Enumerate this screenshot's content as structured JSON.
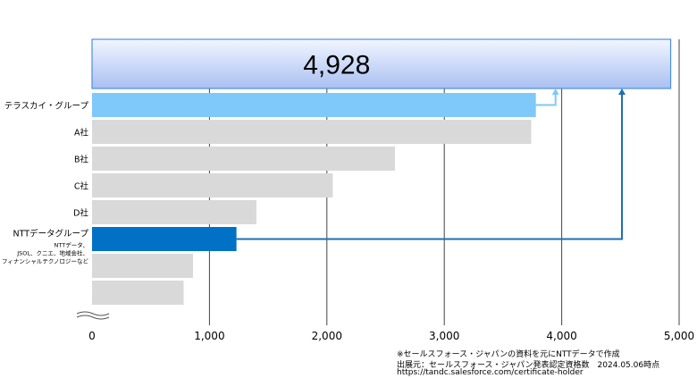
{
  "chart_data": {
    "type": "bar",
    "orientation": "horizontal",
    "categories": [
      "テラスカイ・グループ",
      "A社",
      "B社",
      "C社",
      "D社",
      "NTTデータグループ",
      "",
      ""
    ],
    "ntt_sublabel": [
      "NTTデータ、",
      "JSOL、クニエ、地域会社、",
      "フィナンシャルテクノロジーなど"
    ],
    "values": [
      3780,
      3740,
      2580,
      2050,
      1400,
      1230,
      860,
      780
    ],
    "total": {
      "label": "4,928",
      "value": 4928
    },
    "xlim": [
      0,
      5000
    ],
    "x_ticks": [
      0,
      1000,
      2000,
      3000,
      4000,
      5000
    ],
    "x_tick_labels": [
      "0",
      "1,000",
      "2,000",
      "3,000",
      "4,000",
      "5,000"
    ],
    "grid": true,
    "colors": {
      "terrasky": "#7fc8fa",
      "ntt": "#0071c5",
      "others": "#d9d9d9",
      "total_box_top": "#f2f6ff",
      "total_box_bottom": "#a9c0f2",
      "total_box_border": "#4a90e2",
      "arrow_light": "#7fc8fa",
      "arrow_dark": "#1f6fb0"
    }
  },
  "notes": [
    "※セールスフォース・ジャパンの資料を元にNTTデータで作成",
    "出展元：セールスフォース・ジャパン発表認定資格数　2024.05.06時点",
    "https://tandc.salesforce.com/certificate-holder"
  ]
}
